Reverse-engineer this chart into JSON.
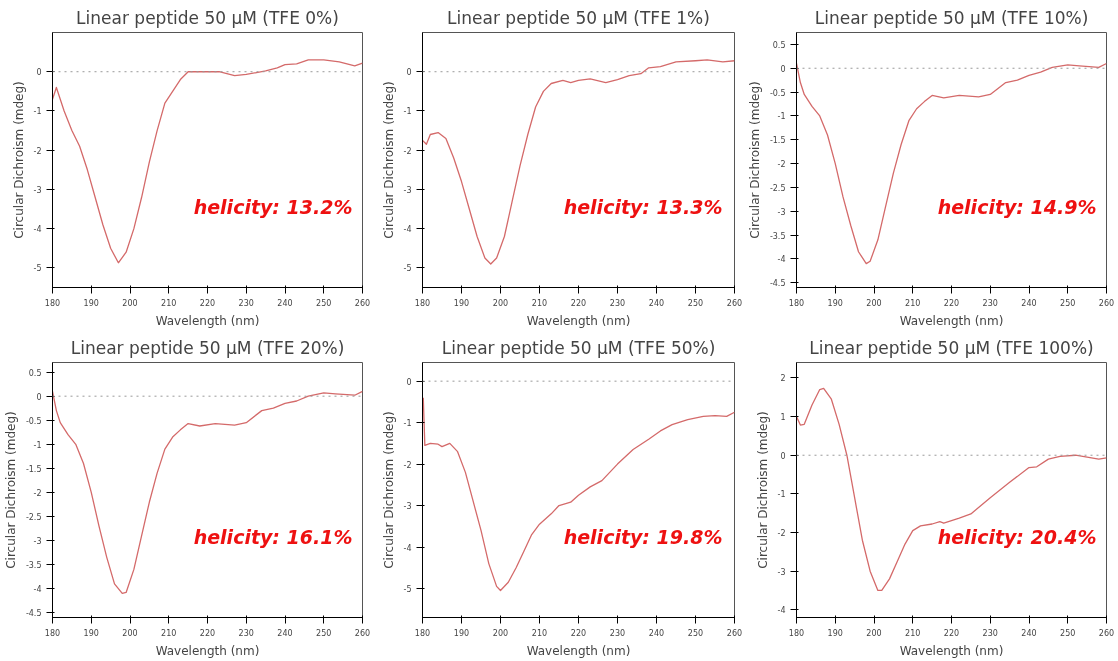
{
  "chart_data": [
    {
      "type": "line",
      "title": "Linear peptide 50 µM (TFE 0%)",
      "xlabel": "Wavelength (nm)",
      "ylabel": "Circular Dichroism (mdeg)",
      "grid": false,
      "xlim": [
        180,
        260
      ],
      "xticks": [
        180,
        190,
        200,
        210,
        220,
        230,
        240,
        250,
        260
      ],
      "ylim": [
        -5.5,
        1
      ],
      "yticks": [
        -5,
        -4,
        -3,
        -2,
        -1,
        0
      ],
      "ref_lines": [
        {
          "axis": "y",
          "value": 0,
          "color": "#999999",
          "line_style": "dotted"
        }
      ],
      "annotations": [
        "helicity: 13.2%"
      ],
      "x": [
        180,
        181,
        183,
        185,
        187,
        189,
        191,
        193,
        195,
        197,
        199,
        201,
        203,
        205,
        207,
        209,
        211,
        213,
        215,
        220,
        223,
        225,
        227,
        230,
        235,
        238,
        240,
        243,
        246,
        250,
        254,
        258,
        260
      ],
      "series": [
        {
          "color": "#d46a6a",
          "values": [
            -0.7,
            -0.4,
            -1.0,
            -1.5,
            -1.9,
            -2.5,
            -3.2,
            -3.9,
            -4.5,
            -4.87,
            -4.6,
            -4.0,
            -3.2,
            -2.3,
            -1.5,
            -0.8,
            -0.5,
            -0.2,
            0.0,
            0.0,
            0.0,
            -0.05,
            -0.1,
            -0.07,
            0.02,
            0.1,
            0.18,
            0.2,
            0.3,
            0.3,
            0.25,
            0.15,
            0.22
          ]
        }
      ]
    },
    {
      "type": "line",
      "title": "Linear peptide 50 µM (TFE 1%)",
      "xlabel": "Wavelength (nm)",
      "ylabel": "Circular Dichroism (mdeg)",
      "grid": false,
      "xlim": [
        180,
        260
      ],
      "xticks": [
        180,
        190,
        200,
        210,
        220,
        230,
        240,
        250,
        260
      ],
      "ylim": [
        -5.5,
        1
      ],
      "yticks": [
        -5,
        -4,
        -3,
        -2,
        -1,
        0
      ],
      "ref_lines": [
        {
          "axis": "y",
          "value": 0,
          "color": "#999999",
          "line_style": "dotted"
        }
      ],
      "annotations": [
        "helicity: 13.3%"
      ],
      "x": [
        180,
        181,
        182,
        184,
        186,
        188,
        190,
        192,
        194,
        196,
        197.5,
        199,
        201,
        203,
        205,
        207,
        209,
        211,
        213,
        216,
        218,
        220,
        223,
        227,
        230,
        233,
        236,
        238,
        241,
        245,
        250,
        253,
        257,
        260
      ],
      "series": [
        {
          "color": "#d46a6a",
          "values": [
            -1.75,
            -1.85,
            -1.6,
            -1.55,
            -1.7,
            -2.2,
            -2.8,
            -3.5,
            -4.2,
            -4.75,
            -4.9,
            -4.75,
            -4.2,
            -3.3,
            -2.4,
            -1.6,
            -0.9,
            -0.5,
            -0.3,
            -0.22,
            -0.28,
            -0.22,
            -0.18,
            -0.28,
            -0.2,
            -0.1,
            -0.05,
            0.1,
            0.13,
            0.25,
            0.28,
            0.3,
            0.25,
            0.28
          ]
        }
      ]
    },
    {
      "type": "line",
      "title": "Linear peptide 50 µM (TFE 10%)",
      "xlabel": "Wavelength (nm)",
      "ylabel": "Circular Dichroism (mdeg)",
      "grid": false,
      "xlim": [
        180,
        260
      ],
      "xticks": [
        180,
        190,
        200,
        210,
        220,
        230,
        240,
        250,
        260
      ],
      "ylim": [
        -4.6,
        0.75
      ],
      "yticks": [
        -4.5,
        -4,
        -3.5,
        -3,
        -2.5,
        -2,
        -1.5,
        -1,
        -0.5,
        0,
        0.5
      ],
      "ref_lines": [
        {
          "axis": "y",
          "value": 0,
          "color": "#999999",
          "line_style": "dotted"
        }
      ],
      "annotations": [
        "helicity: 14.9%"
      ],
      "x": [
        180,
        181,
        182,
        184,
        186,
        188,
        190,
        192,
        194,
        196,
        198,
        199,
        201,
        203,
        205,
        207,
        209,
        211,
        213,
        215,
        218,
        222,
        227,
        230,
        234,
        237,
        240,
        243,
        246,
        250,
        253,
        258,
        260
      ],
      "series": [
        {
          "color": "#d46a6a",
          "values": [
            0.1,
            -0.3,
            -0.55,
            -0.8,
            -1.0,
            -1.4,
            -2.0,
            -2.7,
            -3.3,
            -3.85,
            -4.1,
            -4.05,
            -3.6,
            -2.9,
            -2.2,
            -1.6,
            -1.1,
            -0.85,
            -0.7,
            -0.57,
            -0.62,
            -0.57,
            -0.6,
            -0.55,
            -0.3,
            -0.25,
            -0.15,
            -0.08,
            0.02,
            0.07,
            0.05,
            0.02,
            0.1
          ]
        }
      ]
    },
    {
      "type": "line",
      "title": "Linear peptide 50 µM (TFE 20%)",
      "xlabel": "Wavelength (nm)",
      "ylabel": "Circular Dichroism (mdeg)",
      "grid": false,
      "xlim": [
        180,
        260
      ],
      "xticks": [
        180,
        190,
        200,
        210,
        220,
        230,
        240,
        250,
        260
      ],
      "ylim": [
        -4.6,
        0.7
      ],
      "yticks": [
        -4.5,
        -4,
        -3.5,
        -3,
        -2.5,
        -2,
        -1.5,
        -1,
        -0.5,
        0,
        0.5
      ],
      "ref_lines": [
        {
          "axis": "y",
          "value": 0,
          "color": "#999999",
          "line_style": "dotted"
        }
      ],
      "annotations": [
        "helicity: 16.1%"
      ],
      "x": [
        180,
        181,
        182,
        184,
        186,
        188,
        190,
        192,
        194,
        196,
        198,
        199,
        201,
        203,
        205,
        207,
        209,
        211,
        213,
        215,
        218,
        222,
        227,
        230,
        234,
        237,
        240,
        243,
        246,
        250,
        253,
        258,
        260
      ],
      "series": [
        {
          "color": "#d46a6a",
          "values": [
            0.1,
            -0.3,
            -0.55,
            -0.8,
            -1.0,
            -1.4,
            -2.0,
            -2.7,
            -3.35,
            -3.9,
            -4.1,
            -4.08,
            -3.6,
            -2.9,
            -2.2,
            -1.6,
            -1.1,
            -0.85,
            -0.7,
            -0.57,
            -0.62,
            -0.57,
            -0.6,
            -0.55,
            -0.3,
            -0.25,
            -0.15,
            -0.1,
            0.0,
            0.07,
            0.05,
            0.02,
            0.1
          ]
        }
      ]
    },
    {
      "type": "line",
      "title": "Linear peptide 50 µM (TFE 50%)",
      "xlabel": "Wavelength (nm)",
      "ylabel": "Circular Dichroism (mdeg)",
      "grid": false,
      "xlim": [
        180,
        260
      ],
      "xticks": [
        180,
        190,
        200,
        210,
        220,
        230,
        240,
        250,
        260
      ],
      "ylim": [
        -5.7,
        0.45
      ],
      "yticks": [
        -5,
        -4,
        -3,
        -2,
        -1,
        0
      ],
      "ref_lines": [
        {
          "axis": "y",
          "value": 0,
          "color": "#999999",
          "line_style": "dotted"
        }
      ],
      "annotations": [
        "helicity: 19.8%"
      ],
      "x": [
        180.2,
        180.6,
        182,
        184,
        185,
        187,
        189,
        191,
        193,
        195,
        197,
        199,
        200,
        202,
        204,
        206,
        208,
        210,
        213,
        215,
        218,
        220,
        223,
        226,
        230,
        234,
        238,
        241,
        244,
        248,
        252,
        255,
        258,
        260
      ],
      "series": [
        {
          "color": "#d46a6a",
          "values": [
            -0.4,
            -1.55,
            -1.5,
            -1.52,
            -1.58,
            -1.5,
            -1.7,
            -2.2,
            -2.9,
            -3.6,
            -4.4,
            -4.95,
            -5.05,
            -4.85,
            -4.5,
            -4.1,
            -3.7,
            -3.45,
            -3.2,
            -3.0,
            -2.92,
            -2.75,
            -2.55,
            -2.4,
            -2.0,
            -1.65,
            -1.4,
            -1.2,
            -1.05,
            -0.93,
            -0.85,
            -0.83,
            -0.85,
            -0.75
          ]
        }
      ]
    },
    {
      "type": "line",
      "title": "Linear peptide 50 µM (TFE 100%)",
      "xlabel": "Wavelength (nm)",
      "ylabel": "Circular Dichroism (mdeg)",
      "grid": false,
      "xlim": [
        180,
        260
      ],
      "xticks": [
        180,
        190,
        200,
        210,
        220,
        230,
        240,
        250,
        260
      ],
      "ylim": [
        -4.2,
        2.4
      ],
      "yticks": [
        -4,
        -3,
        -2,
        -1,
        0,
        1,
        2
      ],
      "ref_lines": [
        {
          "axis": "y",
          "value": 0,
          "color": "#999999",
          "line_style": "dotted"
        }
      ],
      "annotations": [
        "helicity: 20.4%"
      ],
      "x": [
        180,
        181,
        182,
        184,
        186,
        187,
        189,
        191,
        193,
        195,
        197,
        199,
        201,
        202,
        204,
        206,
        208,
        210,
        212,
        215,
        217,
        218,
        222,
        225,
        230,
        235,
        240,
        242,
        245,
        248,
        252,
        255,
        258,
        260
      ],
      "series": [
        {
          "color": "#d46a6a",
          "values": [
            1.0,
            0.78,
            0.8,
            1.3,
            1.7,
            1.73,
            1.45,
            0.8,
            0.0,
            -1.1,
            -2.2,
            -3.0,
            -3.5,
            -3.5,
            -3.2,
            -2.75,
            -2.3,
            -1.95,
            -1.83,
            -1.78,
            -1.72,
            -1.76,
            -1.63,
            -1.52,
            -1.1,
            -0.7,
            -0.32,
            -0.3,
            -0.1,
            -0.03,
            0.0,
            -0.05,
            -0.1,
            -0.07
          ]
        }
      ]
    }
  ]
}
